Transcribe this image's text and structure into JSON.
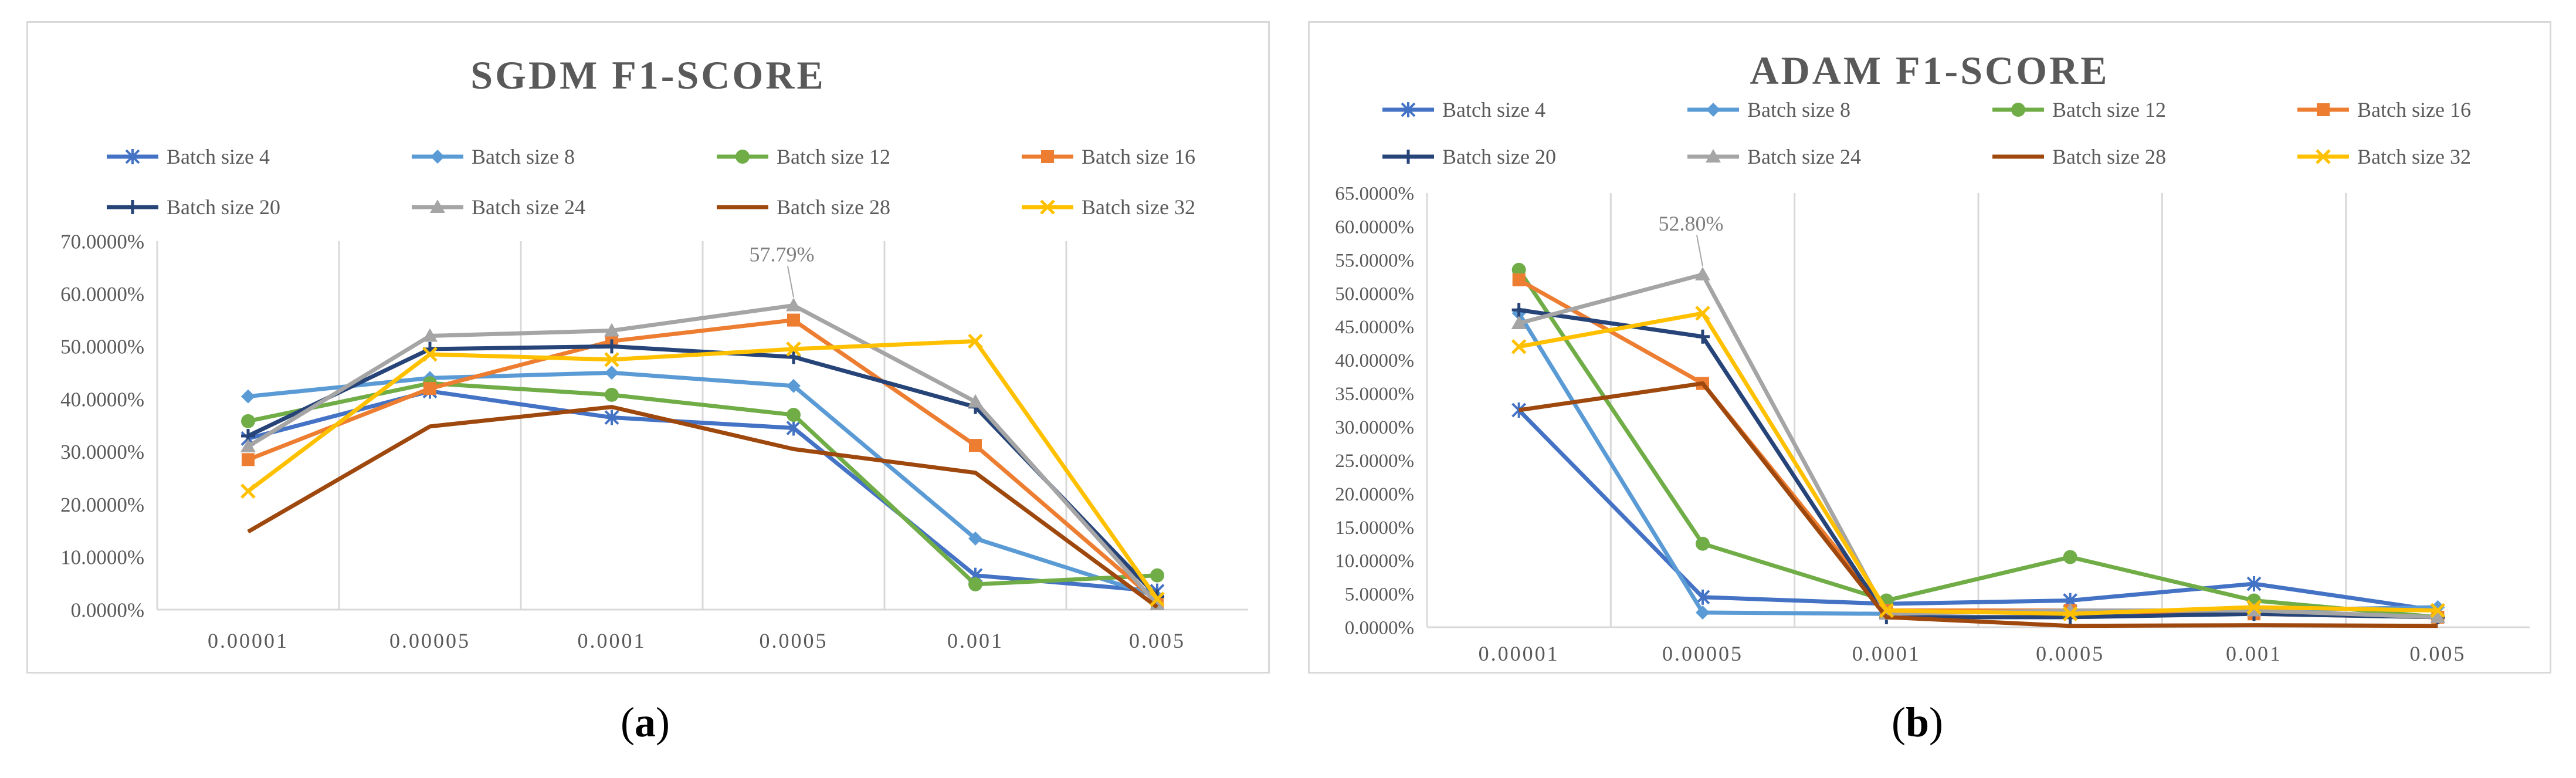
{
  "chart_data": [
    {
      "type": "line",
      "title": "SGDM F1-SCORE",
      "caption_letter": "a",
      "categories": [
        "0.00001",
        "0.00005",
        "0.0001",
        "0.0005",
        "0.001",
        "0.005"
      ],
      "y_ticks": [
        "0.0000%",
        "10.0000%",
        "20.0000%",
        "30.0000%",
        "40.0000%",
        "50.0000%",
        "60.0000%",
        "70.0000%"
      ],
      "ylim": [
        0,
        70
      ],
      "annotation": {
        "text": "57.79%",
        "series": "Batch size 24",
        "index": 3
      },
      "series": [
        {
          "name": "Batch size 4",
          "color": "#4472C4",
          "marker": "asterisk",
          "values": [
            32.5,
            41.5,
            36.5,
            34.5,
            6.5,
            3.5
          ]
        },
        {
          "name": "Batch size 8",
          "color": "#5B9BD5",
          "marker": "diamond",
          "values": [
            40.5,
            44.0,
            45.0,
            42.5,
            13.5,
            2.5
          ]
        },
        {
          "name": "Batch size 12",
          "color": "#70AD47",
          "marker": "circle",
          "values": [
            35.8,
            43.0,
            40.8,
            37.0,
            4.8,
            6.5
          ]
        },
        {
          "name": "Batch size 16",
          "color": "#ED7D31",
          "marker": "square",
          "values": [
            28.5,
            42.0,
            51.0,
            55.0,
            31.2,
            1.5
          ]
        },
        {
          "name": "Batch size 20",
          "color": "#264478",
          "marker": "plus",
          "values": [
            33.0,
            49.5,
            50.0,
            48.0,
            38.5,
            2.5
          ]
        },
        {
          "name": "Batch size 24",
          "color": "#A5A5A5",
          "marker": "triangle",
          "values": [
            31.0,
            52.0,
            53.0,
            57.79,
            39.5,
            1.0
          ]
        },
        {
          "name": "Batch size 28",
          "color": "#9E480E",
          "marker": "none",
          "values": [
            14.8,
            34.8,
            38.5,
            30.5,
            26.0,
            0.5
          ]
        },
        {
          "name": "Batch size 32",
          "color": "#FFC000",
          "marker": "x",
          "values": [
            22.5,
            48.5,
            47.5,
            49.5,
            51.0,
            2.0
          ]
        }
      ]
    },
    {
      "type": "line",
      "title": "ADAM F1-SCORE",
      "caption_letter": "b",
      "categories": [
        "0.00001",
        "0.00005",
        "0.0001",
        "0.0005",
        "0.001",
        "0.005"
      ],
      "y_ticks": [
        "0.0000%",
        "5.0000%",
        "10.0000%",
        "15.0000%",
        "20.0000%",
        "25.0000%",
        "30.0000%",
        "35.0000%",
        "40.0000%",
        "45.0000%",
        "50.0000%",
        "55.0000%",
        "60.0000%",
        "65.0000%"
      ],
      "ylim": [
        0,
        65
      ],
      "annotation": {
        "text": "52.80%",
        "series": "Batch size 24",
        "index": 1
      },
      "series": [
        {
          "name": "Batch size 4",
          "color": "#4472C4",
          "marker": "asterisk",
          "values": [
            32.5,
            4.5,
            3.5,
            4.0,
            6.5,
            2.5
          ]
        },
        {
          "name": "Batch size 8",
          "color": "#5B9BD5",
          "marker": "diamond",
          "values": [
            47.0,
            2.2,
            2.0,
            2.5,
            2.5,
            3.0
          ]
        },
        {
          "name": "Batch size 12",
          "color": "#70AD47",
          "marker": "circle",
          "values": [
            53.5,
            12.5,
            4.0,
            10.5,
            4.0,
            1.5
          ]
        },
        {
          "name": "Batch size 16",
          "color": "#ED7D31",
          "marker": "square",
          "values": [
            52.0,
            36.5,
            2.5,
            2.5,
            2.0,
            1.5
          ]
        },
        {
          "name": "Batch size 20",
          "color": "#264478",
          "marker": "plus",
          "values": [
            47.5,
            43.5,
            1.5,
            1.5,
            2.0,
            1.5
          ]
        },
        {
          "name": "Batch size 24",
          "color": "#A5A5A5",
          "marker": "triangle",
          "values": [
            45.5,
            52.8,
            2.0,
            2.5,
            2.5,
            1.5
          ]
        },
        {
          "name": "Batch size 28",
          "color": "#9E480E",
          "marker": "none",
          "values": [
            32.5,
            36.5,
            1.5,
            0.2,
            0.3,
            0.2
          ]
        },
        {
          "name": "Batch size 32",
          "color": "#FFC000",
          "marker": "x",
          "values": [
            42.0,
            47.0,
            2.5,
            2.0,
            3.0,
            2.5
          ]
        }
      ]
    }
  ]
}
